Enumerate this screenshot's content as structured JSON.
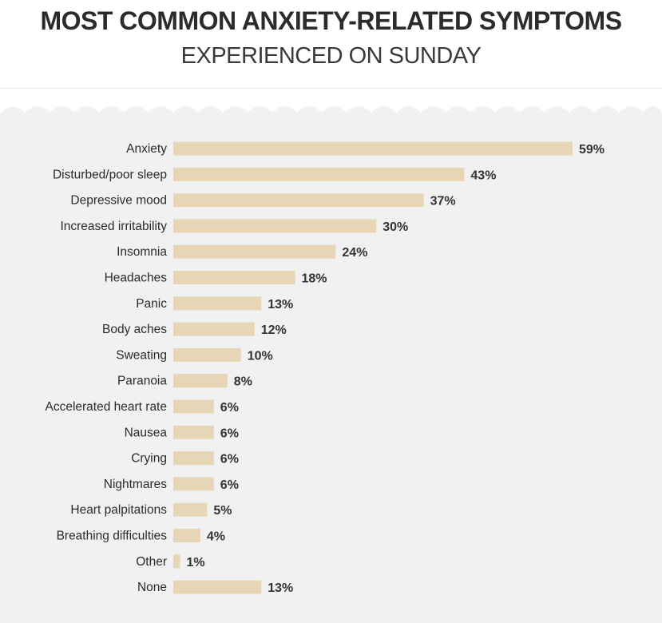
{
  "title": "MOST COMMON ANXIETY-RELATED SYMPTOMS",
  "subtitle": "EXPERIENCED ON SUNDAY",
  "colors": {
    "bar": "#e6d6b6",
    "panel": "#f1f1f1",
    "label": "#2b2b2b",
    "value": "#333333"
  },
  "chart_data": {
    "type": "bar",
    "orientation": "horizontal",
    "categories": [
      "Anxiety",
      "Disturbed/poor sleep",
      "Depressive mood",
      "Increased irritability",
      "Insomnia",
      "Headaches",
      "Panic",
      "Body aches",
      "Sweating",
      "Paranoia",
      "Accelerated heart rate",
      "Nausea",
      "Crying",
      "Nightmares",
      "Heart palpitations",
      "Breathing difficulties",
      "Other",
      "None"
    ],
    "values": [
      59,
      43,
      37,
      30,
      24,
      18,
      13,
      12,
      10,
      8,
      6,
      6,
      6,
      6,
      5,
      4,
      1,
      13
    ],
    "value_labels": [
      "59%",
      "43%",
      "37%",
      "30%",
      "24%",
      "18%",
      "13%",
      "12%",
      "10%",
      "8%",
      "6%",
      "6%",
      "6%",
      "6%",
      "5%",
      "4%",
      "1%",
      "13%"
    ],
    "unit": "%",
    "xlim": [
      0,
      59
    ],
    "grid": false,
    "legend": "none"
  }
}
